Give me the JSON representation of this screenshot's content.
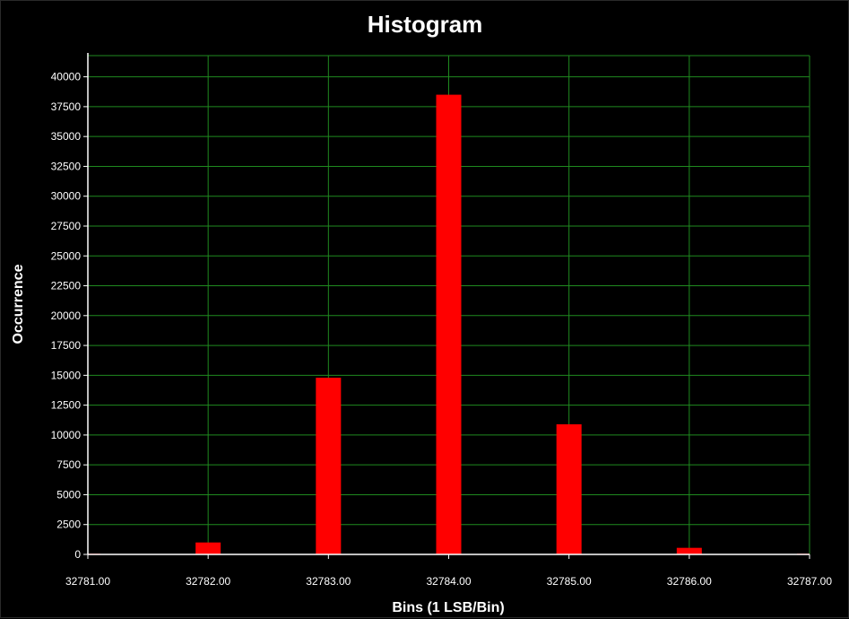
{
  "chart_data": {
    "type": "bar",
    "title": "Histogram",
    "xlabel": "Bins (1 LSB/Bin)",
    "ylabel": "Occurrence",
    "xlim": [
      32781.0,
      32787.0
    ],
    "ylim": [
      0,
      42000
    ],
    "x_ticks": [
      "32781.00",
      "32782.00",
      "32783.00",
      "32784.00",
      "32785.00",
      "32786.00",
      "32787.00"
    ],
    "y_ticks": [
      0,
      2500,
      5000,
      7500,
      10000,
      12500,
      15000,
      17500,
      20000,
      22500,
      25000,
      27500,
      30000,
      32500,
      35000,
      37500,
      40000
    ],
    "bins": [
      32781,
      32782,
      32783,
      32784,
      32785,
      32786,
      32787
    ],
    "values": [
      60,
      1000,
      14800,
      38500,
      10900,
      550,
      60
    ],
    "grid": true,
    "colors": {
      "background": "#000000",
      "bar": "#ff0000",
      "grid": "#1f8a1f",
      "axis": "#ffffff",
      "text": "#ffffff"
    }
  }
}
